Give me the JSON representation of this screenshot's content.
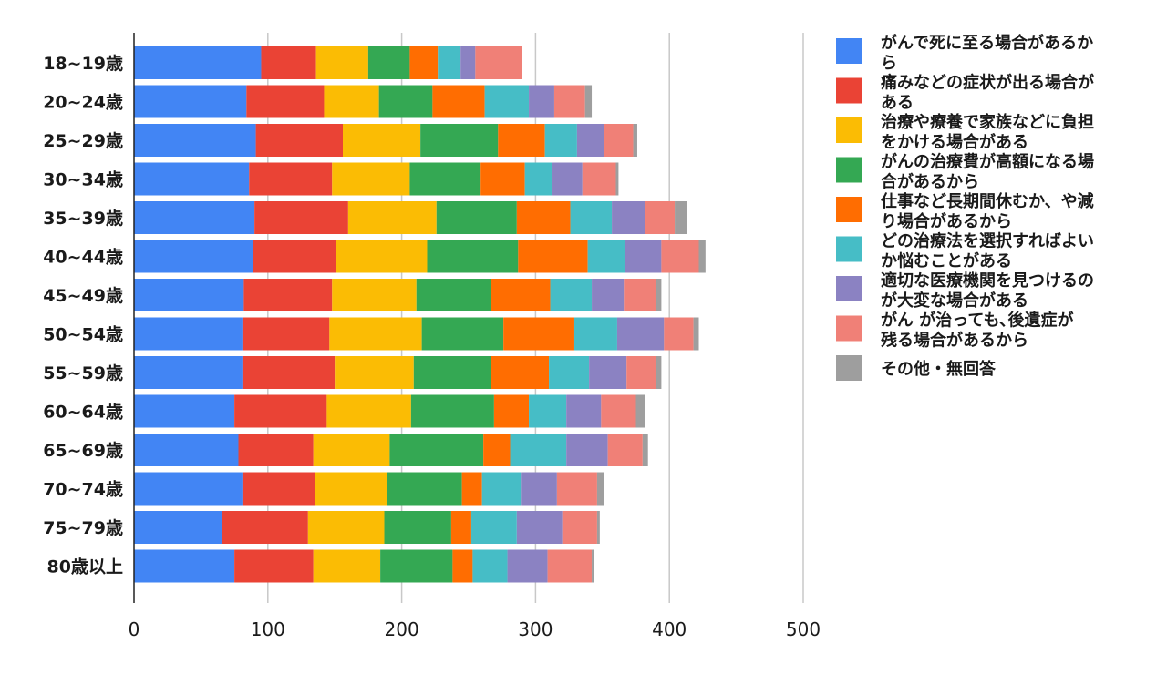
{
  "chart_data": {
    "type": "bar",
    "orientation": "horizontal",
    "stacked": true,
    "categories": [
      "18~19歳",
      "20~24歳",
      "25~29歳",
      "30~34歳",
      "35~39歳",
      "40~44歳",
      "45~49歳",
      "50~54歳",
      "55~59歳",
      "60~64歳",
      "65~69歳",
      "70~74歳",
      "75~79歳",
      "80歳以上"
    ],
    "xlim": [
      0,
      500
    ],
    "xticks": [
      0,
      100,
      200,
      300,
      400,
      500
    ],
    "grid": true,
    "legend_position": "right",
    "series": [
      {
        "name": "がんで死に至る場合があるから",
        "color": "#4285f4",
        "values": [
          95,
          84,
          91,
          86,
          90,
          89,
          82,
          81,
          81,
          75,
          78,
          81,
          66,
          75
        ]
      },
      {
        "name": "痛みなどの症状が出る場合がある",
        "color": "#ea4335",
        "values": [
          41,
          58,
          65,
          62,
          70,
          62,
          66,
          65,
          69,
          69,
          56,
          54,
          64,
          59
        ]
      },
      {
        "name": "治療や療養で家族などに負担をかける場合がある",
        "color": "#fbbc04",
        "values": [
          39,
          41,
          58,
          58,
          66,
          68,
          63,
          69,
          59,
          63,
          57,
          54,
          57,
          50
        ]
      },
      {
        "name": "がんの治療費が高額になる場合があるから",
        "color": "#34a853",
        "values": [
          31,
          40,
          58,
          53,
          60,
          68,
          56,
          61,
          58,
          62,
          70,
          56,
          50,
          54
        ]
      },
      {
        "name": "仕事など長期間休むか、や減り場合があるから",
        "color": "#ff6d01",
        "values": [
          21,
          39,
          35,
          33,
          40,
          52,
          44,
          53,
          43,
          26,
          20,
          15,
          15,
          15
        ]
      },
      {
        "name": "どの治療法を選択すればよいか悩むことがある",
        "color": "#46bdc6",
        "values": [
          17,
          33,
          24,
          20,
          31,
          28,
          31,
          32,
          30,
          28,
          42,
          29,
          34,
          26
        ]
      },
      {
        "name": "適切な医療機関を見つけるのが大変な場合がある",
        "color": "#8b82c2",
        "values": [
          11,
          19,
          20,
          23,
          25,
          27,
          24,
          35,
          28,
          26,
          31,
          27,
          34,
          30
        ]
      },
      {
        "name": "がん が治っても､後遺症が残る場合があるから",
        "color": "#f08077",
        "values": [
          35,
          23,
          22,
          25,
          22,
          28,
          24,
          22,
          22,
          26,
          26,
          30,
          26,
          33
        ]
      },
      {
        "name": "その他・無回答",
        "color": "#9e9e9e",
        "values": [
          0,
          5,
          3,
          2,
          9,
          5,
          4,
          4,
          4,
          7,
          4,
          5,
          2,
          2
        ]
      }
    ]
  }
}
